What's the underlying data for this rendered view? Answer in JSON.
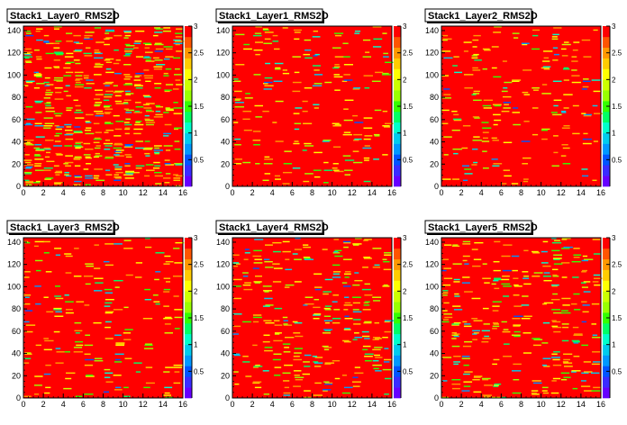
{
  "chart_data": [
    {
      "type": "heatmap",
      "title": "Stack1_Layer0_RMS2D",
      "xlim": [
        0,
        16
      ],
      "ylim": [
        0,
        144
      ],
      "zlim": [
        0,
        3
      ],
      "x_ticks": [
        "0",
        "2",
        "4",
        "6",
        "8",
        "10",
        "12",
        "14",
        "16"
      ],
      "y_ticks": [
        "0",
        "20",
        "40",
        "60",
        "80",
        "100",
        "120",
        "140"
      ],
      "z_ticks": [
        "0.5",
        "1",
        "1.5",
        "2",
        "2.5",
        "3"
      ],
      "background_value": 3,
      "variation": "high"
    },
    {
      "type": "heatmap",
      "title": "Stack1_Layer1_RMS2D",
      "xlim": [
        0,
        16
      ],
      "ylim": [
        0,
        144
      ],
      "zlim": [
        0,
        3
      ],
      "x_ticks": [
        "0",
        "2",
        "4",
        "6",
        "8",
        "10",
        "12",
        "14",
        "16"
      ],
      "y_ticks": [
        "0",
        "20",
        "40",
        "60",
        "80",
        "100",
        "120",
        "140"
      ],
      "z_ticks": [
        "0.5",
        "1",
        "1.5",
        "2",
        "2.5",
        "3"
      ],
      "background_value": 3,
      "variation": "low"
    },
    {
      "type": "heatmap",
      "title": "Stack1_Layer2_RMS2D",
      "xlim": [
        0,
        16
      ],
      "ylim": [
        0,
        144
      ],
      "zlim": [
        0,
        3
      ],
      "x_ticks": [
        "0",
        "2",
        "4",
        "6",
        "8",
        "10",
        "12",
        "14",
        "16"
      ],
      "y_ticks": [
        "0",
        "20",
        "40",
        "60",
        "80",
        "100",
        "120",
        "140"
      ],
      "z_ticks": [
        "0.5",
        "1",
        "1.5",
        "2",
        "2.5",
        "3"
      ],
      "background_value": 3,
      "variation": "low"
    },
    {
      "type": "heatmap",
      "title": "Stack1_Layer3_RMS2D",
      "xlim": [
        0,
        16
      ],
      "ylim": [
        0,
        144
      ],
      "zlim": [
        0,
        3
      ],
      "x_ticks": [
        "0",
        "2",
        "4",
        "6",
        "8",
        "10",
        "12",
        "14",
        "16"
      ],
      "y_ticks": [
        "0",
        "20",
        "40",
        "60",
        "80",
        "100",
        "120",
        "140"
      ],
      "z_ticks": [
        "0.5",
        "1",
        "1.5",
        "2",
        "2.5",
        "3"
      ],
      "background_value": 3,
      "variation": "low"
    },
    {
      "type": "heatmap",
      "title": "Stack1_Layer4_RMS2D",
      "xlim": [
        0,
        16
      ],
      "ylim": [
        0,
        144
      ],
      "zlim": [
        0,
        3
      ],
      "x_ticks": [
        "0",
        "2",
        "4",
        "6",
        "8",
        "10",
        "12",
        "14",
        "16"
      ],
      "y_ticks": [
        "0",
        "20",
        "40",
        "60",
        "80",
        "100",
        "120",
        "140"
      ],
      "z_ticks": [
        "0.5",
        "1",
        "1.5",
        "2",
        "2.5",
        "3"
      ],
      "background_value": 3,
      "variation": "medium"
    },
    {
      "type": "heatmap",
      "title": "Stack1_Layer5_RMS2D",
      "xlim": [
        0,
        16
      ],
      "ylim": [
        0,
        144
      ],
      "zlim": [
        0,
        3
      ],
      "x_ticks": [
        "0",
        "2",
        "4",
        "6",
        "8",
        "10",
        "12",
        "14",
        "16"
      ],
      "y_ticks": [
        "0",
        "20",
        "40",
        "60",
        "80",
        "100",
        "120",
        "140"
      ],
      "z_ticks": [
        "0.5",
        "1",
        "1.5",
        "2",
        "2.5",
        "3"
      ],
      "background_value": 3,
      "variation": "medium"
    }
  ],
  "colors": {
    "background": "#ffffff",
    "palette": [
      "#6600ff",
      "#3a2cff",
      "#0055ff",
      "#0099ff",
      "#00ccee",
      "#00ffcc",
      "#00ff66",
      "#33ff00",
      "#99ff00",
      "#ccff00",
      "#ffff00",
      "#ffcc00",
      "#ff9900",
      "#ff5500",
      "#ff0000"
    ],
    "max_color": "#ff0000"
  }
}
